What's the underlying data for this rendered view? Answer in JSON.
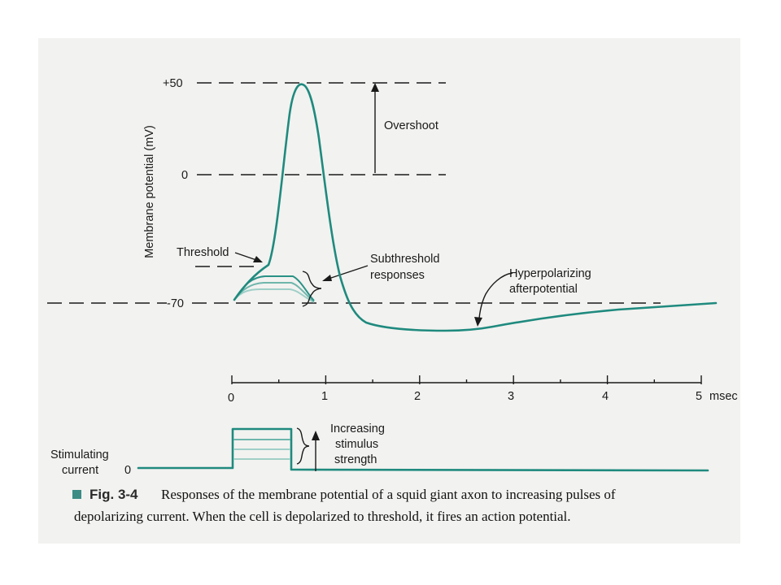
{
  "figure": {
    "y_axis_label": "Membrane potential (mV)",
    "y_ticks": {
      "plus50": "+50",
      "zero": "0",
      "minus70": "-70"
    },
    "labels": {
      "threshold": "Threshold",
      "overshoot": "Overshoot",
      "subthreshold_line1": "Subthreshold",
      "subthreshold_line2": "responses",
      "hyper_line1": "Hyperpolarizing",
      "hyper_line2": "afterpotential"
    },
    "time_axis": {
      "ticks": [
        "0",
        "1",
        "2",
        "3",
        "4",
        "5"
      ],
      "unit": "msec"
    },
    "stimulus": {
      "label_line1": "Stimulating",
      "label_line2": "current",
      "zero": "0",
      "increasing_line1": "Increasing",
      "increasing_line2": "stimulus",
      "increasing_line3": "strength"
    },
    "caption": {
      "label": "Fig. 3-4",
      "line1": "Responses of the membrane potential of a squid giant axon to increasing pulses of",
      "line2": "depolarizing current. When the cell is depolarized to threshold, it fires an action potential."
    },
    "colors": {
      "trace": "#1f8a7e",
      "background": "#f2f2f0",
      "caption_marker": "#3d8c86"
    }
  }
}
